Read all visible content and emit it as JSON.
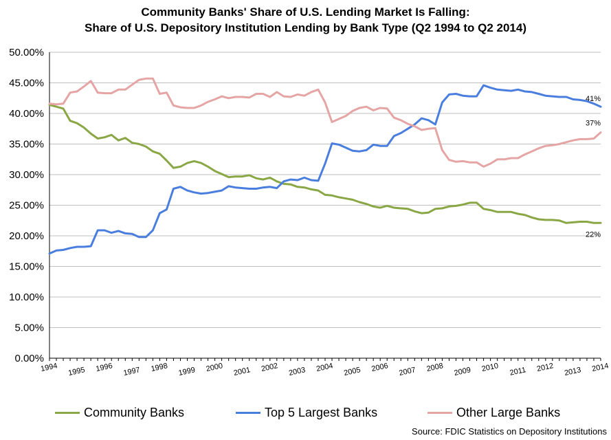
{
  "title_line1": "Community Banks' Share of U.S. Lending Market Is Falling:",
  "title_line2": "Share of U.S. Depository Institution Lending by Bank Type (Q2 1994 to Q2 2014)",
  "source": "Source: FDIC Statistics on Depository Institutions",
  "chart_data": {
    "type": "line",
    "title": "Community Banks' Share of U.S. Lending Market Is Falling: Share of U.S. Depository Institution Lending by Bank Type (Q2 1994 to Q2 2014)",
    "xlabel": "",
    "ylabel": "",
    "ylim": [
      0,
      50
    ],
    "yticks": [
      "0.00%",
      "5.00%",
      "10.00%",
      "15.00%",
      "20.00%",
      "25.00%",
      "30.00%",
      "35.00%",
      "40.00%",
      "45.00%",
      "50.00%"
    ],
    "xticks": [
      "1994",
      "1995",
      "1996",
      "1997",
      "1998",
      "1999",
      "2000",
      "2001",
      "2002",
      "2003",
      "2004",
      "2005",
      "2006",
      "2007",
      "2008",
      "2009",
      "2010",
      "2011",
      "2012",
      "2013",
      "2014"
    ],
    "x_start": "Q2 1994",
    "x_end": "Q2 2014",
    "grid": "horizontal",
    "legend_position": "bottom",
    "end_labels": [
      "22%",
      "41%",
      "37%"
    ],
    "series": [
      {
        "name": "Community Banks",
        "color": "#8aa746",
        "values": [
          41.4,
          41.1,
          40.8,
          38.8,
          38.4,
          37.7,
          36.7,
          35.9,
          36.1,
          36.5,
          35.6,
          36.0,
          35.2,
          35.0,
          34.6,
          33.8,
          33.4,
          32.3,
          31.1,
          31.3,
          31.9,
          32.2,
          31.9,
          31.3,
          30.6,
          30.1,
          29.6,
          29.7,
          29.7,
          29.9,
          29.4,
          29.2,
          29.5,
          28.9,
          28.5,
          28.4,
          28.0,
          27.9,
          27.6,
          27.4,
          26.7,
          26.6,
          26.3,
          26.1,
          25.9,
          25.5,
          25.2,
          24.8,
          24.6,
          24.9,
          24.6,
          24.5,
          24.4,
          24.0,
          23.7,
          23.8,
          24.4,
          24.5,
          24.8,
          24.9,
          25.1,
          25.4,
          25.4,
          24.4,
          24.2,
          23.9,
          23.9,
          23.9,
          23.6,
          23.4,
          23.0,
          22.7,
          22.6,
          22.6,
          22.5,
          22.1,
          22.2,
          22.3,
          22.3,
          22.1,
          22.1
        ]
      },
      {
        "name": "Top 5 Largest Banks",
        "color": "#4a7ede",
        "values": [
          17.1,
          17.6,
          17.7,
          18.0,
          18.2,
          18.2,
          18.3,
          20.9,
          20.9,
          20.5,
          20.8,
          20.4,
          20.3,
          19.8,
          19.8,
          20.9,
          23.7,
          24.3,
          27.7,
          28.0,
          27.4,
          27.1,
          26.9,
          27.0,
          27.2,
          27.4,
          28.1,
          27.9,
          27.8,
          27.7,
          27.7,
          27.9,
          28.0,
          27.8,
          28.9,
          29.2,
          29.1,
          29.5,
          29.1,
          29.0,
          31.8,
          35.1,
          34.9,
          34.4,
          33.9,
          33.8,
          34.0,
          34.9,
          34.7,
          34.7,
          36.3,
          36.8,
          37.5,
          38.2,
          39.2,
          38.9,
          38.2,
          41.8,
          43.1,
          43.2,
          42.9,
          42.8,
          42.8,
          44.6,
          44.2,
          43.9,
          43.8,
          43.7,
          43.9,
          43.6,
          43.5,
          43.2,
          42.9,
          42.8,
          42.7,
          42.7,
          42.3,
          42.2,
          42.0,
          41.6,
          41.1
        ]
      },
      {
        "name": "Other Large Banks",
        "color": "#e4a5a4",
        "values": [
          41.6,
          41.5,
          41.6,
          43.4,
          43.6,
          44.4,
          45.3,
          43.4,
          43.3,
          43.3,
          43.9,
          43.9,
          44.7,
          45.5,
          45.7,
          45.7,
          43.2,
          43.4,
          41.3,
          41.0,
          40.9,
          40.9,
          41.3,
          41.9,
          42.3,
          42.8,
          42.5,
          42.7,
          42.7,
          42.6,
          43.2,
          43.2,
          42.7,
          43.5,
          42.8,
          42.7,
          43.1,
          42.9,
          43.5,
          43.9,
          41.8,
          38.6,
          39.1,
          39.6,
          40.4,
          40.9,
          41.1,
          40.5,
          40.9,
          40.8,
          39.3,
          38.9,
          38.3,
          37.9,
          37.3,
          37.5,
          37.6,
          34.0,
          32.4,
          32.1,
          32.2,
          32.0,
          32.0,
          31.3,
          31.8,
          32.5,
          32.5,
          32.7,
          32.7,
          33.3,
          33.8,
          34.3,
          34.7,
          34.8,
          35.0,
          35.3,
          35.6,
          35.8,
          35.8,
          35.9,
          36.9
        ]
      }
    ]
  }
}
